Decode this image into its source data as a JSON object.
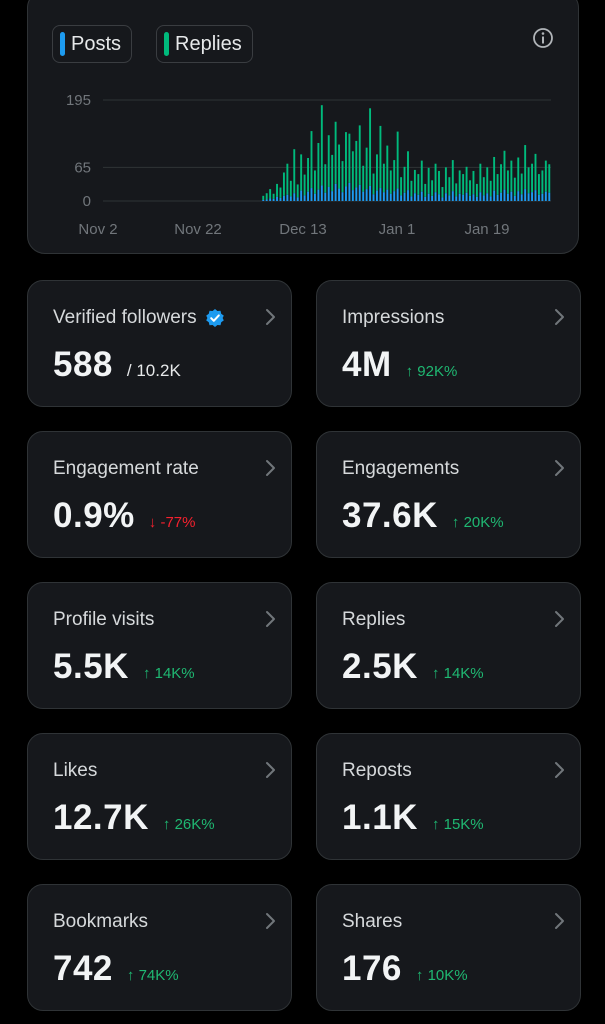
{
  "legend": {
    "posts_label": "Posts",
    "replies_label": "Replies",
    "posts_color": "#1d9bf0",
    "replies_color": "#00ba7c",
    "info_icon": "info-icon"
  },
  "chart_data": {
    "type": "bar",
    "stacked": true,
    "y_ticks": [
      195,
      65,
      0
    ],
    "ylim": [
      0,
      195
    ],
    "x_tick_labels": [
      "Nov 2",
      "Nov 22",
      "Dec 13",
      "Jan 1",
      "Jan 19"
    ],
    "grid": true,
    "series": [
      {
        "name": "Posts",
        "values": [
          0,
          0,
          0,
          0,
          0,
          0,
          0,
          0,
          0,
          0,
          0,
          0,
          0,
          0,
          0,
          0,
          0,
          0,
          0,
          0,
          0,
          0,
          0,
          0,
          0,
          0,
          0,
          0,
          0,
          0,
          0,
          0,
          0,
          0,
          0,
          0,
          0,
          0,
          0,
          0,
          0,
          0,
          0,
          0,
          0,
          0,
          2,
          3,
          5,
          4,
          8,
          6,
          10,
          12,
          9,
          15,
          7,
          20,
          11,
          18,
          25,
          14,
          22,
          30,
          16,
          27,
          19,
          33,
          24,
          17,
          28,
          35,
          21,
          26,
          31,
          18,
          23,
          29,
          13,
          20,
          25,
          17,
          22,
          14,
          19,
          24,
          11,
          16,
          21,
          9,
          15,
          12,
          18,
          8,
          14,
          10,
          17,
          13,
          7,
          15,
          11,
          19,
          9,
          14,
          12,
          16,
          10,
          13,
          8,
          17,
          11,
          15,
          9,
          20,
          12,
          16,
          22,
          14,
          18,
          10,
          19,
          13,
          23,
          15,
          17,
          21,
          12,
          14,
          18,
          16
        ]
      },
      {
        "name": "Replies",
        "values": [
          0,
          0,
          0,
          0,
          0,
          0,
          0,
          0,
          0,
          0,
          0,
          0,
          0,
          0,
          0,
          0,
          0,
          0,
          0,
          0,
          0,
          0,
          0,
          0,
          0,
          0,
          0,
          0,
          0,
          0,
          0,
          0,
          0,
          0,
          0,
          0,
          0,
          0,
          0,
          0,
          0,
          0,
          0,
          0,
          0,
          0,
          8,
          12,
          18,
          10,
          25,
          20,
          45,
          60,
          30,
          85,
          25,
          70,
          40,
          65,
          110,
          45,
          90,
          155,
          55,
          100,
          70,
          120,
          85,
          60,
          105,
          95,
          75,
          90,
          115,
          50,
          80,
          150,
          40,
          70,
          120,
          55,
          85,
          45,
          60,
          110,
          35,
          50,
          75,
          30,
          45,
          40,
          60,
          25,
          50,
          30,
          55,
          45,
          20,
          50,
          35,
          60,
          25,
          45,
          40,
          50,
          30,
          45,
          25,
          55,
          35,
          50,
          30,
          65,
          40,
          55,
          75,
          45,
          60,
          35,
          65,
          40,
          85,
          50,
          55,
          70,
          40,
          45,
          60,
          55
        ]
      }
    ]
  },
  "tiles": [
    {
      "label": "Verified followers",
      "value": "588",
      "sub": "/ 10.2K",
      "change": "",
      "direction": "",
      "verified_icon": "verified-badge-icon"
    },
    {
      "label": "Impressions",
      "value": "4M",
      "sub": "",
      "change": "↑ 92K%",
      "direction": "up"
    },
    {
      "label": "Engagement rate",
      "value": "0.9%",
      "sub": "",
      "change": "↓ -77%",
      "direction": "down"
    },
    {
      "label": "Engagements",
      "value": "37.6K",
      "sub": "",
      "change": "↑ 20K%",
      "direction": "up"
    },
    {
      "label": "Profile visits",
      "value": "5.5K",
      "sub": "",
      "change": "↑ 14K%",
      "direction": "up"
    },
    {
      "label": "Replies",
      "value": "2.5K",
      "sub": "",
      "change": "↑ 14K%",
      "direction": "up"
    },
    {
      "label": "Likes",
      "value": "12.7K",
      "sub": "",
      "change": "↑ 26K%",
      "direction": "up"
    },
    {
      "label": "Reposts",
      "value": "1.1K",
      "sub": "",
      "change": "↑ 15K%",
      "direction": "up"
    },
    {
      "label": "Bookmarks",
      "value": "742",
      "sub": "",
      "change": "↑ 74K%",
      "direction": "up"
    },
    {
      "label": "Shares",
      "value": "176",
      "sub": "",
      "change": "↑ 10K%",
      "direction": "up"
    }
  ]
}
